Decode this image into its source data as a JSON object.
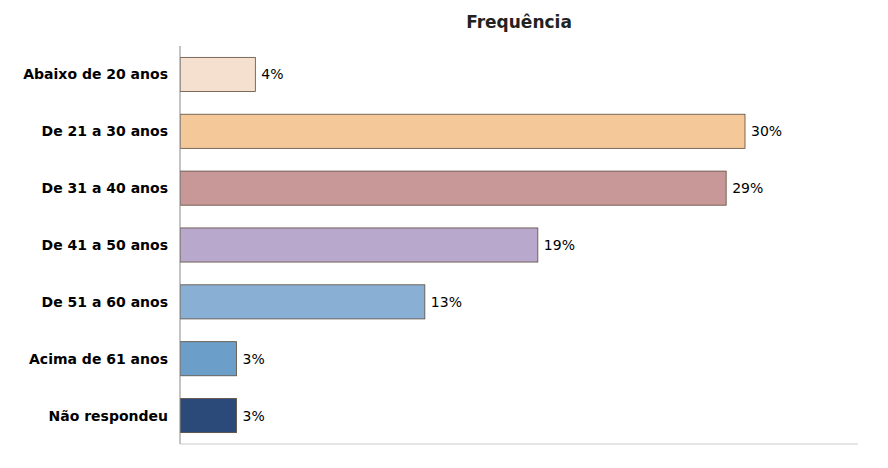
{
  "chart_data": {
    "type": "bar",
    "orientation": "horizontal",
    "title": "Frequência",
    "categories": [
      "Abaixo de 20 anos",
      "De 21 a 30 anos",
      "De 31 a 40 anos",
      "De 41 a 50 anos",
      "De 51 a 60 anos",
      "Acima de 61 anos",
      "Não respondeu"
    ],
    "values": [
      4,
      30,
      29,
      19,
      13,
      3,
      3
    ],
    "value_labels": [
      "4%",
      "30%",
      "29%",
      "19%",
      "13%",
      "3%",
      "3%"
    ],
    "colors": [
      "#f5e0d0",
      "#f5c89a",
      "#c89898",
      "#b8a8cc",
      "#8aafd4",
      "#6b9ec8",
      "#2b4a7a"
    ],
    "xlim": [
      0,
      36
    ],
    "data_labels": true,
    "grid": false,
    "tick_labels": "y"
  }
}
